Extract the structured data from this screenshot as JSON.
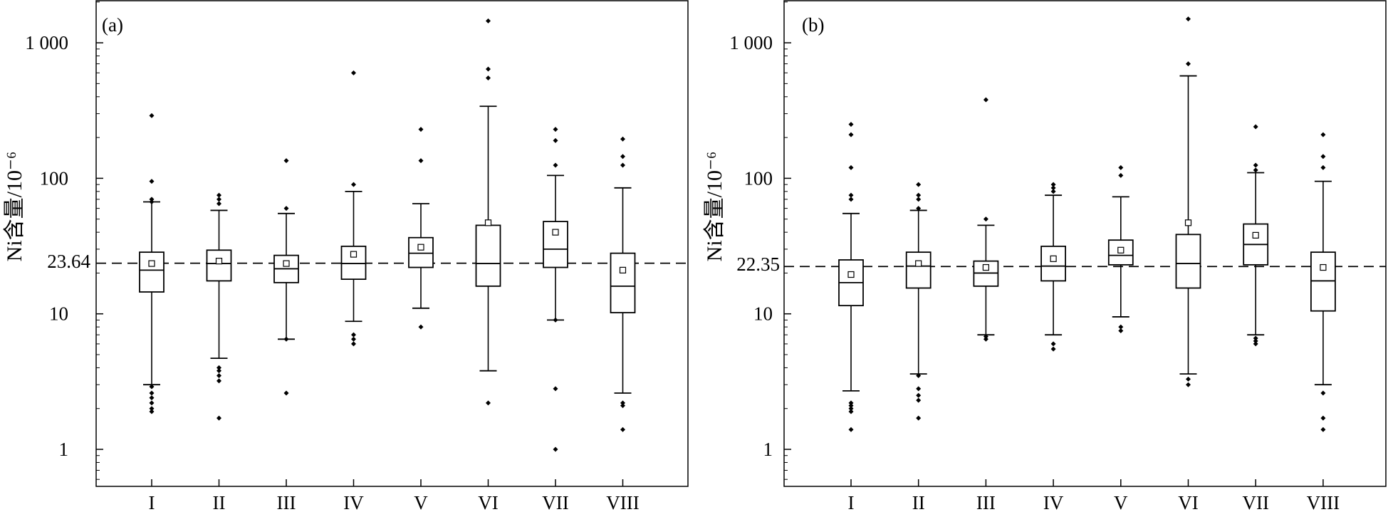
{
  "chart_data": [
    {
      "type": "box",
      "panel_label": "(a)",
      "ylabel": "Ni含量/10⁻⁶",
      "yscale": "log",
      "ylim": [
        0.6,
        2000
      ],
      "yticks": [
        1,
        10,
        100,
        1000
      ],
      "ytick_labels": [
        "1",
        "10",
        "100",
        "1 000"
      ],
      "reference_line": {
        "value": 23.64,
        "label": "23.64",
        "style": "dashed"
      },
      "categories": [
        "I",
        "II",
        "III",
        "IV",
        "V",
        "VI",
        "VII",
        "VIII"
      ],
      "boxes": [
        {
          "whisker_low": 3.0,
          "q1": 14.5,
          "median": 21.0,
          "q3": 28.5,
          "whisker_high": 67,
          "mean": 23.5,
          "outliers": [
            1.9,
            2.0,
            2.2,
            2.4,
            2.6,
            2.9,
            67,
            70,
            95,
            290
          ]
        },
        {
          "whisker_low": 4.7,
          "q1": 17.5,
          "median": 23.5,
          "q3": 29.5,
          "whisker_high": 58,
          "mean": 24.5,
          "outliers": [
            1.7,
            3.2,
            3.5,
            3.8,
            4.0,
            65,
            70,
            75
          ]
        },
        {
          "whisker_low": 6.5,
          "q1": 17.0,
          "median": 21.5,
          "q3": 27.0,
          "whisker_high": 55,
          "mean": 23.5,
          "outliers": [
            2.6,
            6.5,
            60,
            135
          ]
        },
        {
          "whisker_low": 8.8,
          "q1": 18.0,
          "median": 23.5,
          "q3": 31.5,
          "whisker_high": 80,
          "mean": 27.5,
          "outliers": [
            6.0,
            6.5,
            7.0,
            90,
            600
          ]
        },
        {
          "whisker_low": 11.0,
          "q1": 22.0,
          "median": 28.0,
          "q3": 36.5,
          "whisker_high": 65,
          "mean": 31.0,
          "outliers": [
            8.0,
            135,
            230
          ]
        },
        {
          "whisker_low": 3.8,
          "q1": 16.0,
          "median": 23.5,
          "q3": 45.0,
          "whisker_high": 340,
          "mean": 47.0,
          "outliers": [
            2.2,
            550,
            640,
            1450
          ]
        },
        {
          "whisker_low": 9.0,
          "q1": 22.0,
          "median": 30.0,
          "q3": 48.0,
          "whisker_high": 105,
          "mean": 40.0,
          "outliers": [
            1.0,
            2.8,
            9.0,
            125,
            190,
            230
          ]
        },
        {
          "whisker_low": 2.6,
          "q1": 10.2,
          "median": 16.0,
          "q3": 28.0,
          "whisker_high": 85,
          "mean": 21.0,
          "outliers": [
            1.4,
            2.1,
            2.2,
            125,
            145,
            195
          ]
        }
      ]
    },
    {
      "type": "box",
      "panel_label": "(b)",
      "ylabel": "Ni含量/10⁻⁶",
      "yscale": "log",
      "ylim": [
        0.6,
        2000
      ],
      "yticks": [
        1,
        10,
        100,
        1000
      ],
      "ytick_labels": [
        "1",
        "10",
        "100",
        "1 000"
      ],
      "reference_line": {
        "value": 22.35,
        "label": "22.35",
        "style": "dashed"
      },
      "categories": [
        "I",
        "II",
        "III",
        "IV",
        "V",
        "VI",
        "VII",
        "VIII"
      ],
      "boxes": [
        {
          "whisker_low": 2.7,
          "q1": 11.5,
          "median": 17.0,
          "q3": 25.0,
          "whisker_high": 55,
          "mean": 19.5,
          "outliers": [
            1.4,
            1.9,
            2.0,
            2.1,
            2.2,
            70,
            75,
            120,
            210,
            250
          ]
        },
        {
          "whisker_low": 3.6,
          "q1": 15.5,
          "median": 22.5,
          "q3": 28.5,
          "whisker_high": 58,
          "mean": 23.5,
          "outliers": [
            1.7,
            2.3,
            2.5,
            2.8,
            3.5,
            60,
            70,
            75,
            90
          ]
        },
        {
          "whisker_low": 7.0,
          "q1": 16.0,
          "median": 20.0,
          "q3": 24.5,
          "whisker_high": 45,
          "mean": 22.0,
          "outliers": [
            6.5,
            6.8,
            50,
            380
          ]
        },
        {
          "whisker_low": 7.0,
          "q1": 17.5,
          "median": 22.5,
          "q3": 31.5,
          "whisker_high": 75,
          "mean": 25.5,
          "outliers": [
            5.5,
            6.0,
            80,
            85,
            90
          ]
        },
        {
          "whisker_low": 9.5,
          "q1": 23.0,
          "median": 27.0,
          "q3": 35.0,
          "whisker_high": 73,
          "mean": 29.5,
          "outliers": [
            7.5,
            8.0,
            105,
            120
          ]
        },
        {
          "whisker_low": 3.6,
          "q1": 15.5,
          "median": 23.5,
          "q3": 38.5,
          "whisker_high": 570,
          "mean": 47.0,
          "outliers": [
            3.0,
            3.3,
            700,
            1500
          ]
        },
        {
          "whisker_low": 7.0,
          "q1": 23.0,
          "median": 32.5,
          "q3": 46.0,
          "whisker_high": 110,
          "mean": 38.0,
          "outliers": [
            6.0,
            6.3,
            6.6,
            115,
            125,
            240
          ]
        },
        {
          "whisker_low": 3.0,
          "q1": 10.5,
          "median": 17.5,
          "q3": 28.5,
          "whisker_high": 95,
          "mean": 22.0,
          "outliers": [
            1.4,
            1.7,
            2.6,
            120,
            145,
            210
          ]
        }
      ]
    }
  ]
}
